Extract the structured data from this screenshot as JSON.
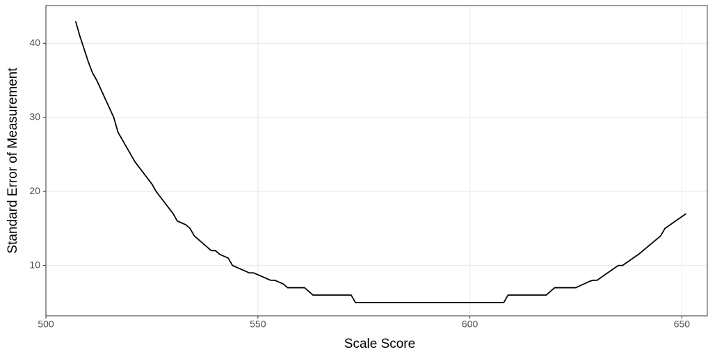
{
  "chart_data": {
    "type": "line",
    "x_label": "Scale Score",
    "y_label": "Standard Error of Measurement",
    "x": [
      507,
      508,
      510,
      511,
      512,
      514,
      516,
      517,
      519,
      521,
      523,
      525,
      526,
      528,
      530,
      531,
      533,
      534,
      535,
      537,
      539,
      540,
      541,
      543,
      544,
      546,
      548,
      549,
      551,
      553,
      554,
      556,
      557,
      561,
      563,
      572,
      573,
      608,
      609,
      618,
      620,
      625,
      628,
      629,
      630,
      632,
      634,
      635,
      636,
      640,
      645,
      646,
      648,
      651
    ],
    "series": [
      {
        "color": "#000000",
        "values": [
          43,
          41,
          37.5,
          36,
          35,
          32.5,
          30,
          28,
          26,
          24,
          22.5,
          21,
          20,
          18.5,
          17,
          16,
          15.5,
          15,
          14,
          13,
          12,
          12,
          11.5,
          11,
          10,
          9.5,
          9,
          9,
          8.5,
          8,
          8,
          7.5,
          7,
          7,
          6,
          6,
          5,
          5,
          6,
          6,
          7,
          7,
          7.8,
          8,
          8,
          8.8,
          9.6,
          10,
          10,
          11.6,
          14,
          15,
          15.8,
          17
        ]
      }
    ],
    "xlim": [
      500,
      656
    ],
    "ylim": [
      3.2,
      45.1
    ],
    "xticks": [
      500,
      550,
      600,
      650
    ],
    "yticks": [
      10,
      20,
      30,
      40
    ],
    "grid": true
  }
}
